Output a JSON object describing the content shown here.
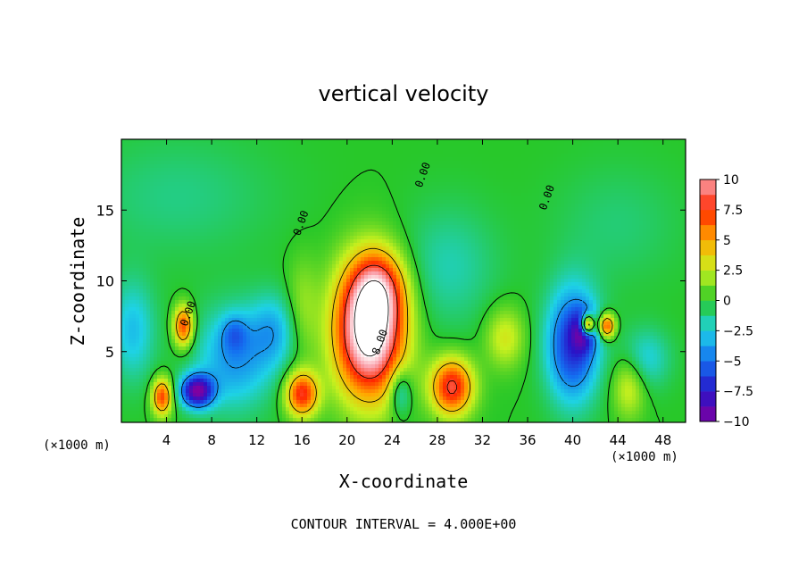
{
  "chart_data": {
    "type": "heatmap",
    "title": "vertical velocity",
    "xlabel": "X-coordinate",
    "ylabel": "Z-coordinate",
    "x_unit_left": "(×1000 m)",
    "x_unit_right": "(×1000 m)",
    "footer": "CONTOUR INTERVAL = 4.000E+00",
    "xlim": [
      0,
      50
    ],
    "ylim": [
      0,
      20
    ],
    "x_ticks": [
      4,
      8,
      12,
      16,
      20,
      24,
      28,
      32,
      36,
      40,
      44,
      48
    ],
    "y_ticks": [
      5,
      10,
      15
    ],
    "x_tick_labels": [
      "4",
      "8",
      "12",
      "16",
      "20",
      "24",
      "28",
      "32",
      "36",
      "40",
      "44",
      "48"
    ],
    "y_tick_labels": [
      "5",
      "10",
      "15"
    ],
    "colorbar": {
      "min": -10,
      "max": 10,
      "tick_labels": [
        "10",
        "7.5",
        "5",
        "2.5",
        "0",
        "−2.5",
        "−5",
        "−7.5",
        "−10"
      ],
      "tick_values": [
        10,
        7.5,
        5,
        2.5,
        0,
        -2.5,
        -5,
        -7.5,
        -10
      ]
    },
    "contour_labels": [
      {
        "text": "0.00",
        "x": 6.2,
        "z": 7.6
      },
      {
        "text": "0.00",
        "x": 16.2,
        "z": 14.0
      },
      {
        "text": "0.00",
        "x": 27.0,
        "z": 17.4
      },
      {
        "text": "0.00",
        "x": 38.0,
        "z": 15.8
      },
      {
        "text": "8.00",
        "x": 23.2,
        "z": 5.6
      }
    ],
    "field_features": [
      {
        "kind": "updraft",
        "x": 22.0,
        "z": 6.5,
        "sx": 2.1,
        "sz": 3.2,
        "value": 14
      },
      {
        "kind": "updraft",
        "x": 22.8,
        "z": 9.5,
        "sx": 1.6,
        "sz": 1.8,
        "value": 5
      },
      {
        "kind": "updraft",
        "x": 29.3,
        "z": 2.5,
        "sx": 1.3,
        "sz": 1.4,
        "value": 8.5
      },
      {
        "kind": "updraft",
        "x": 16.0,
        "z": 2.0,
        "sx": 1.0,
        "sz": 1.1,
        "value": 8
      },
      {
        "kind": "updraft",
        "x": 3.6,
        "z": 1.8,
        "sx": 0.6,
        "sz": 0.9,
        "value": 7.5
      },
      {
        "kind": "updraft",
        "x": 5.5,
        "z": 6.8,
        "sx": 0.6,
        "sz": 1.0,
        "value": 7.5
      },
      {
        "kind": "updraft",
        "x": 43.0,
        "z": 6.8,
        "sx": 0.5,
        "sz": 0.6,
        "value": 8
      },
      {
        "kind": "updraft",
        "x": 41.3,
        "z": 6.9,
        "sx": 0.4,
        "sz": 0.5,
        "value": 13
      },
      {
        "kind": "updraft",
        "x": 34.0,
        "z": 6.0,
        "sx": 1.2,
        "sz": 1.5,
        "value": 3
      },
      {
        "kind": "updraft",
        "x": 45.0,
        "z": 2.5,
        "sx": 1.0,
        "sz": 1.5,
        "value": 3
      },
      {
        "kind": "updraft",
        "x": 16.0,
        "z": 8.0,
        "sx": 1.0,
        "sz": 2.5,
        "value": 1.8
      },
      {
        "kind": "downdraft",
        "x": 6.7,
        "z": 2.2,
        "sx": 1.0,
        "sz": 0.8,
        "value": -9.5
      },
      {
        "kind": "downdraft",
        "x": 10.0,
        "z": 4.5,
        "sx": 2.4,
        "sz": 2.5,
        "value": -4
      },
      {
        "kind": "downdraft",
        "x": 10.0,
        "z": 6.3,
        "sx": 0.8,
        "sz": 0.9,
        "value": -2.5
      },
      {
        "kind": "downdraft",
        "x": 13.5,
        "z": 6.5,
        "sx": 1.5,
        "sz": 1.8,
        "value": -3
      },
      {
        "kind": "downdraft",
        "x": 40.0,
        "z": 5.5,
        "sx": 1.6,
        "sz": 2.8,
        "value": -7
      },
      {
        "kind": "downdraft",
        "x": 41.0,
        "z": 6.5,
        "sx": 0.7,
        "sz": 1.0,
        "value": -5
      },
      {
        "kind": "downdraft",
        "x": 1.0,
        "z": 6.5,
        "sx": 1.4,
        "sz": 2.5,
        "value": -3
      },
      {
        "kind": "downdraft",
        "x": 24.7,
        "z": 2.2,
        "sx": 0.7,
        "sz": 1.2,
        "value": -3.5
      },
      {
        "kind": "downdraft",
        "x": 29.0,
        "z": 11.0,
        "sx": 3.0,
        "sz": 3.0,
        "value": -1.8
      },
      {
        "kind": "downdraft",
        "x": 46.5,
        "z": 4.5,
        "sx": 1.5,
        "sz": 1.5,
        "value": -2.5
      },
      {
        "kind": "downdraft",
        "x": 5.0,
        "z": 16.0,
        "sx": 6.0,
        "sz": 3.0,
        "value": -1.2
      },
      {
        "kind": "downdraft",
        "x": 44.0,
        "z": 14.0,
        "sx": 4.0,
        "sz": 3.0,
        "value": -1.0
      }
    ]
  }
}
